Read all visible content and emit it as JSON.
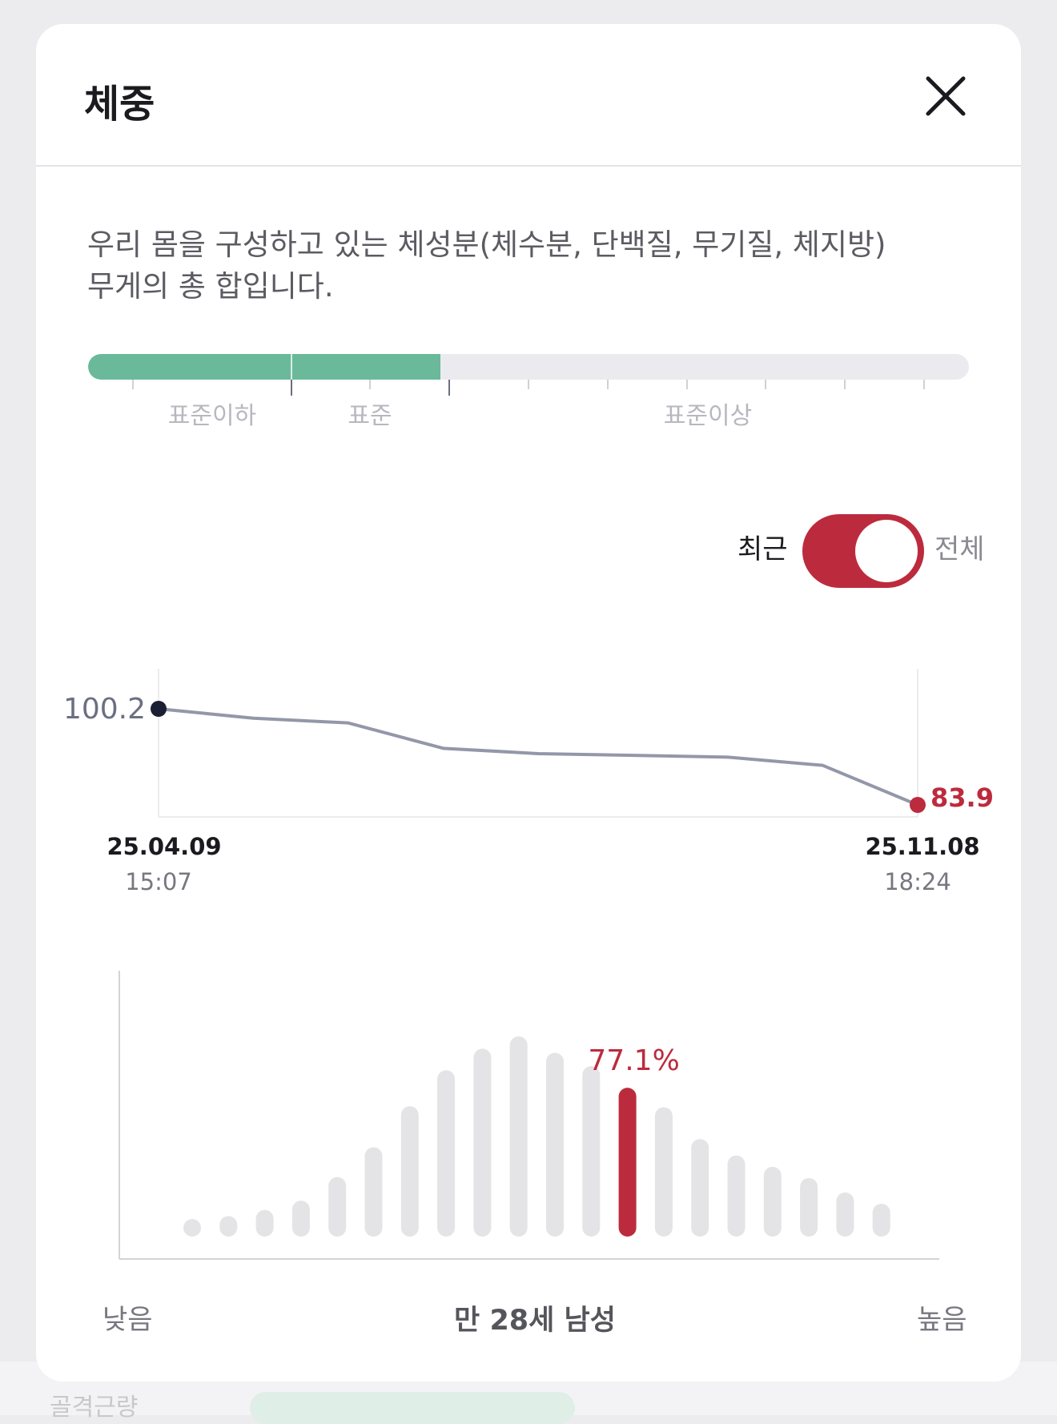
{
  "dialog": {
    "title": "체중",
    "close_icon": "close-icon",
    "description_lines": [
      "우리 몸을 구성하고 있는 체성분(체수분, 단백질, 무기질, 체지방)",
      "무게의 총 합입니다."
    ]
  },
  "range_bar": {
    "labels": [
      "표준이하",
      "표준",
      "표준이상"
    ],
    "fill_fraction": 0.4,
    "fill_color": "#6ab99b"
  },
  "toggle": {
    "left_label": "최근",
    "right_label": "전체",
    "state": "전체",
    "active_color": "#bc2b3d"
  },
  "chart_data": [
    {
      "type": "line",
      "series": [
        {
          "values": [
            100.2,
            98.6,
            97.8,
            93.5,
            92.6,
            92.3,
            92.0,
            90.6,
            83.9
          ]
        }
      ],
      "x_start_label": {
        "date": "25.04.09",
        "time": "15:07"
      },
      "x_end_label": {
        "date": "25.11.08",
        "time": "18:24"
      },
      "first_value_label": "100.2",
      "last_value_label": "83.9",
      "first_point_color": "#1b1f33",
      "last_point_color": "#bc2b3d",
      "line_color": "#9397a8"
    },
    {
      "type": "bar",
      "values": [
        1.5,
        2,
        2.6,
        3.5,
        5.8,
        8.7,
        12.7,
        16.2,
        18.3,
        19.5,
        17.9,
        16.6,
        14.5,
        12.6,
        9.5,
        7.9,
        6.8,
        5.7,
        4.3,
        3.2
      ],
      "highlight_index": 12,
      "highlight_label": "77.1%",
      "highlight_color": "#bc2b3d",
      "bar_color": "#e4e4e6",
      "x_left_label": "낮음",
      "x_center_label": "만 28세 남성",
      "x_right_label": "높음"
    }
  ]
}
